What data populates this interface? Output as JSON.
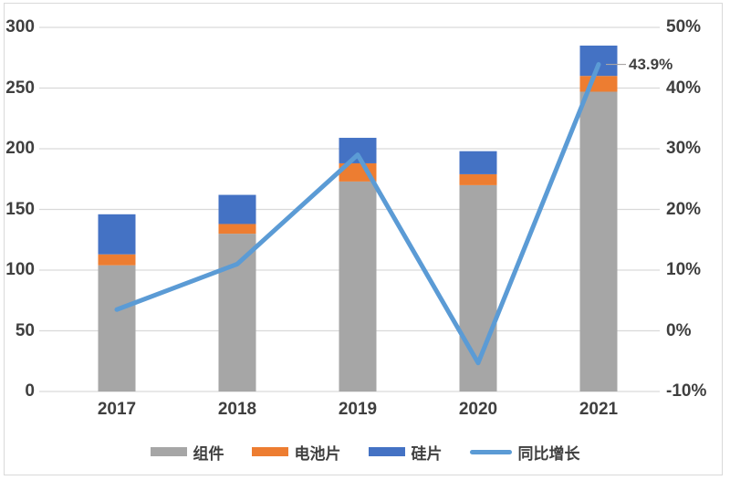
{
  "chart_data": {
    "type": "bar",
    "variant": "stacked-column-with-line-overlay",
    "categories": [
      "2017",
      "2018",
      "2019",
      "2020",
      "2021"
    ],
    "series": [
      {
        "name": "组件",
        "color": "#A6A6A6",
        "values": [
          104,
          130,
          173,
          170,
          247
        ]
      },
      {
        "name": "电池片",
        "color": "#ED7D31",
        "values": [
          9,
          8,
          15,
          9,
          13
        ]
      },
      {
        "name": "硅片",
        "color": "#4472C4",
        "values": [
          33,
          24,
          21,
          19,
          25
        ]
      }
    ],
    "stack_totals": [
      146,
      162,
      209,
      198,
      285
    ],
    "line_series": {
      "name": "同比增长",
      "color": "#5B9BD5",
      "unit": "%",
      "values": [
        3.5,
        11,
        29,
        -5.3,
        43.9
      ]
    },
    "left_axis": {
      "min": 0,
      "max": 300,
      "step": 50,
      "ticks": [
        "0",
        "50",
        "100",
        "150",
        "200",
        "250",
        "300"
      ]
    },
    "right_axis": {
      "min": -10,
      "max": 50,
      "step": 10,
      "ticks": [
        "-10%",
        "0%",
        "10%",
        "20%",
        "30%",
        "40%",
        "50%"
      ]
    },
    "annotation": {
      "text": "43.9%",
      "category": "2021",
      "series": "同比增长"
    },
    "grid": true,
    "legend_position": "bottom",
    "title": "",
    "xlabel": "",
    "ylabel": ""
  },
  "colors": {
    "grid": "#D9D9D9",
    "frame_border": "#D9D9D9",
    "text": "#3F3F3F",
    "leader_line": "#A9A5A5",
    "background": "#FFFFFF"
  }
}
